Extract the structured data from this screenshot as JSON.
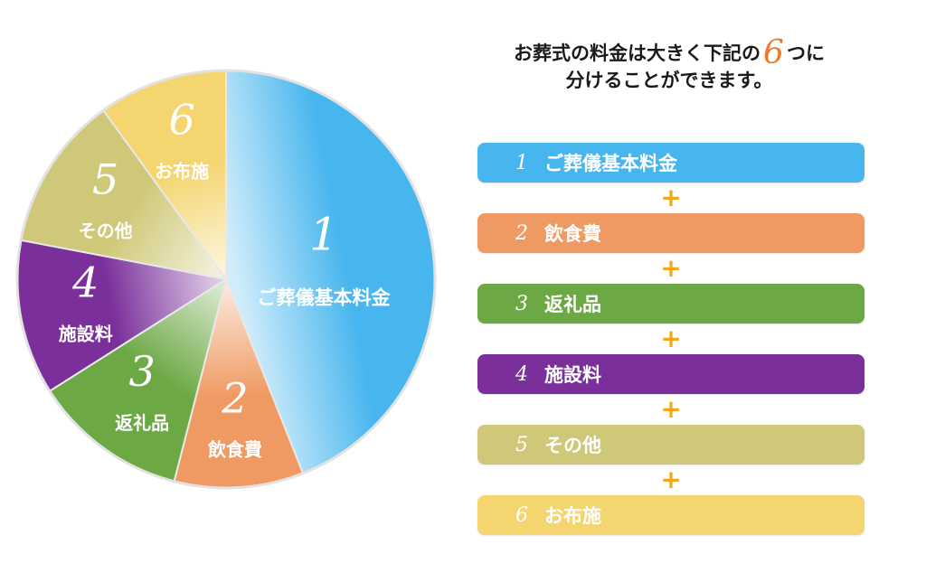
{
  "headline": {
    "line1_before": "お葬式の料金は大きく下記の",
    "line1_number": "6",
    "line1_after": "つに",
    "line2": "分けることができます。"
  },
  "plus_sign": "+",
  "colors": {
    "ceremony": "#48b6ee",
    "food": "#ef9a62",
    "gifts": "#6ca844",
    "facility": "#7a2f9a",
    "other": "#cfc878",
    "offering": "#f4d56f",
    "accent_six": "#ee7a28",
    "plus": "#f5a81a"
  },
  "chart_data": {
    "type": "pie",
    "slices": [
      {
        "number": "1",
        "label": "ご葬儀基本料金",
        "value": 44,
        "color": "#48b6ee"
      },
      {
        "number": "2",
        "label": "飲食費",
        "value": 10,
        "color": "#ef9a62"
      },
      {
        "number": "3",
        "label": "返礼品",
        "value": 12,
        "color": "#6ca844"
      },
      {
        "number": "4",
        "label": "施設料",
        "value": 12,
        "color": "#7a2f9a"
      },
      {
        "number": "5",
        "label": "その他",
        "value": 12,
        "color": "#cfc878"
      },
      {
        "number": "6",
        "label": "お布施",
        "value": 10,
        "color": "#f4d56f"
      }
    ]
  },
  "list": [
    {
      "number": "1",
      "label": "ご葬儀基本料金",
      "color": "#48b6ee"
    },
    {
      "number": "2",
      "label": "飲食費",
      "color": "#ef9a62"
    },
    {
      "number": "3",
      "label": "返礼品",
      "color": "#6ca844"
    },
    {
      "number": "4",
      "label": "施設料",
      "color": "#7a2f9a"
    },
    {
      "number": "5",
      "label": "その他",
      "color": "#cfc878"
    },
    {
      "number": "6",
      "label": "お布施",
      "color": "#f4d56f"
    }
  ]
}
